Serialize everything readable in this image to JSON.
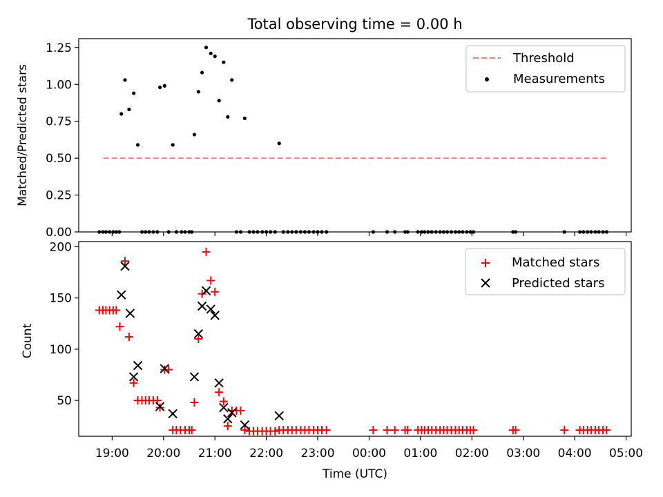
{
  "figure": {
    "title": "Total observing time = 0.00 h",
    "xlabel": "Time (UTC)",
    "xticks": [
      "19:00",
      "20:00",
      "21:00",
      "22:00",
      "23:00",
      "00:00",
      "01:00",
      "02:00",
      "03:00",
      "04:00",
      "05:00"
    ]
  },
  "chart_data": [
    {
      "type": "scatter",
      "ylabel": "Matched/Predicted stars",
      "xlim": [
        18.35,
        29.1
      ],
      "ylim": [
        0,
        1.31
      ],
      "yticks": [
        "0.00",
        "0.25",
        "0.50",
        "0.75",
        "1.00",
        "1.25"
      ],
      "grid": false,
      "legend_position": "upper-right",
      "threshold": {
        "name": "Threshold",
        "value": 0.5,
        "x": [
          18.83,
          28.63
        ],
        "color": "#ff7f7f",
        "style": "dashed"
      },
      "series": [
        {
          "name": "Measurements",
          "color": "#000000",
          "marker": "dot",
          "points": [
            [
              18.75,
              0
            ],
            [
              18.82,
              0
            ],
            [
              18.88,
              0
            ],
            [
              18.95,
              0
            ],
            [
              19.02,
              0
            ],
            [
              19.08,
              0
            ],
            [
              19.14,
              0
            ],
            [
              19.18,
              0.8
            ],
            [
              19.25,
              1.03
            ],
            [
              19.33,
              0.83
            ],
            [
              19.42,
              0.94
            ],
            [
              19.5,
              0.59
            ],
            [
              19.58,
              0
            ],
            [
              19.65,
              0
            ],
            [
              19.72,
              0
            ],
            [
              19.8,
              0
            ],
            [
              19.88,
              0
            ],
            [
              19.93,
              0.98
            ],
            [
              20.02,
              0.99
            ],
            [
              20.1,
              0
            ],
            [
              20.18,
              0.59
            ],
            [
              20.25,
              0
            ],
            [
              20.35,
              0
            ],
            [
              20.42,
              0
            ],
            [
              20.5,
              0
            ],
            [
              20.55,
              0
            ],
            [
              20.6,
              0.66
            ],
            [
              20.68,
              0.95
            ],
            [
              20.75,
              1.08
            ],
            [
              20.83,
              1.25
            ],
            [
              20.92,
              1.21
            ],
            [
              21.0,
              1.19
            ],
            [
              21.08,
              0.89
            ],
            [
              21.17,
              1.15
            ],
            [
              21.25,
              0.78
            ],
            [
              21.33,
              1.03
            ],
            [
              21.42,
              0
            ],
            [
              21.5,
              0
            ],
            [
              21.58,
              0.77
            ],
            [
              21.67,
              0
            ],
            [
              21.75,
              0
            ],
            [
              21.83,
              0
            ],
            [
              21.92,
              0
            ],
            [
              22.0,
              0
            ],
            [
              22.08,
              0
            ],
            [
              22.17,
              0
            ],
            [
              22.25,
              0.6
            ],
            [
              22.33,
              0
            ],
            [
              22.42,
              0
            ],
            [
              22.5,
              0
            ],
            [
              22.58,
              0
            ],
            [
              22.67,
              0
            ],
            [
              22.75,
              0
            ],
            [
              22.83,
              0
            ],
            [
              22.92,
              0
            ],
            [
              23.0,
              0
            ],
            [
              23.08,
              0
            ],
            [
              23.17,
              0
            ],
            [
              24.08,
              0
            ],
            [
              24.35,
              0
            ],
            [
              24.5,
              0
            ],
            [
              24.7,
              0
            ],
            [
              24.75,
              0
            ],
            [
              24.95,
              0
            ],
            [
              25.02,
              0
            ],
            [
              25.08,
              0
            ],
            [
              25.15,
              0
            ],
            [
              25.22,
              0
            ],
            [
              25.3,
              0
            ],
            [
              25.38,
              0
            ],
            [
              25.45,
              0
            ],
            [
              25.52,
              0
            ],
            [
              25.6,
              0
            ],
            [
              25.68,
              0
            ],
            [
              25.75,
              0
            ],
            [
              25.82,
              0
            ],
            [
              25.9,
              0
            ],
            [
              25.97,
              0
            ],
            [
              26.03,
              0
            ],
            [
              26.8,
              0
            ],
            [
              26.85,
              0
            ],
            [
              27.8,
              0
            ],
            [
              28.1,
              0
            ],
            [
              28.17,
              0
            ],
            [
              28.25,
              0
            ],
            [
              28.32,
              0
            ],
            [
              28.4,
              0
            ],
            [
              28.47,
              0
            ],
            [
              28.55,
              0
            ],
            [
              28.62,
              0
            ]
          ]
        }
      ]
    },
    {
      "type": "scatter",
      "ylabel": "Count",
      "xlim": [
        18.35,
        29.1
      ],
      "ylim": [
        15,
        205
      ],
      "yticks": [
        "50",
        "100",
        "150",
        "200"
      ],
      "grid": false,
      "legend_position": "upper-right",
      "series": [
        {
          "name": "Matched stars",
          "color": "#ff0000",
          "marker": "plus",
          "points": [
            [
              18.75,
              138
            ],
            [
              18.82,
              138
            ],
            [
              18.88,
              138
            ],
            [
              18.95,
              138
            ],
            [
              19.02,
              138
            ],
            [
              19.08,
              138
            ],
            [
              19.15,
              122
            ],
            [
              19.25,
              186
            ],
            [
              19.33,
              112
            ],
            [
              19.42,
              67
            ],
            [
              19.5,
              50
            ],
            [
              19.58,
              50
            ],
            [
              19.65,
              50
            ],
            [
              19.72,
              50
            ],
            [
              19.8,
              50
            ],
            [
              19.88,
              50
            ],
            [
              19.93,
              43
            ],
            [
              20.02,
              80
            ],
            [
              20.1,
              80
            ],
            [
              20.18,
              21
            ],
            [
              20.25,
              21
            ],
            [
              20.33,
              21
            ],
            [
              20.42,
              21
            ],
            [
              20.5,
              21
            ],
            [
              20.55,
              21
            ],
            [
              20.6,
              48
            ],
            [
              20.68,
              110
            ],
            [
              20.75,
              154
            ],
            [
              20.83,
              195
            ],
            [
              20.92,
              167
            ],
            [
              21.0,
              156
            ],
            [
              21.08,
              58
            ],
            [
              21.17,
              49
            ],
            [
              21.25,
              25
            ],
            [
              21.33,
              40
            ],
            [
              21.42,
              40
            ],
            [
              21.5,
              40
            ],
            [
              21.58,
              21
            ],
            [
              21.67,
              20
            ],
            [
              21.75,
              20
            ],
            [
              21.83,
              20
            ],
            [
              21.92,
              20
            ],
            [
              22.0,
              20
            ],
            [
              22.08,
              20
            ],
            [
              22.17,
              20
            ],
            [
              22.25,
              21
            ],
            [
              22.33,
              21
            ],
            [
              22.42,
              21
            ],
            [
              22.5,
              21
            ],
            [
              22.58,
              21
            ],
            [
              22.67,
              21
            ],
            [
              22.75,
              21
            ],
            [
              22.83,
              21
            ],
            [
              22.92,
              21
            ],
            [
              23.0,
              21
            ],
            [
              23.08,
              21
            ],
            [
              23.17,
              21
            ],
            [
              24.08,
              21
            ],
            [
              24.35,
              21
            ],
            [
              24.5,
              21
            ],
            [
              24.7,
              21
            ],
            [
              24.75,
              21
            ],
            [
              24.95,
              21
            ],
            [
              25.02,
              21
            ],
            [
              25.08,
              21
            ],
            [
              25.15,
              21
            ],
            [
              25.22,
              21
            ],
            [
              25.3,
              21
            ],
            [
              25.38,
              21
            ],
            [
              25.45,
              21
            ],
            [
              25.52,
              21
            ],
            [
              25.6,
              21
            ],
            [
              25.68,
              21
            ],
            [
              25.75,
              21
            ],
            [
              25.82,
              21
            ],
            [
              25.9,
              21
            ],
            [
              25.97,
              21
            ],
            [
              26.03,
              21
            ],
            [
              26.8,
              21
            ],
            [
              26.85,
              21
            ],
            [
              27.8,
              21
            ],
            [
              28.1,
              21
            ],
            [
              28.17,
              21
            ],
            [
              28.25,
              21
            ],
            [
              28.32,
              21
            ],
            [
              28.4,
              21
            ],
            [
              28.47,
              21
            ],
            [
              28.55,
              21
            ],
            [
              28.62,
              21
            ]
          ]
        },
        {
          "name": "Predicted stars",
          "color": "#000000",
          "marker": "x",
          "points": [
            [
              19.18,
              153
            ],
            [
              19.25,
              181
            ],
            [
              19.35,
              135
            ],
            [
              19.42,
              73
            ],
            [
              19.5,
              84
            ],
            [
              19.93,
              44
            ],
            [
              20.02,
              81
            ],
            [
              20.18,
              37
            ],
            [
              20.6,
              73
            ],
            [
              20.68,
              115
            ],
            [
              20.75,
              142
            ],
            [
              20.83,
              157
            ],
            [
              20.92,
              139
            ],
            [
              21.0,
              133
            ],
            [
              21.08,
              67
            ],
            [
              21.17,
              43
            ],
            [
              21.25,
              32
            ],
            [
              21.33,
              38
            ],
            [
              21.58,
              26
            ],
            [
              22.25,
              35
            ]
          ]
        }
      ]
    }
  ]
}
